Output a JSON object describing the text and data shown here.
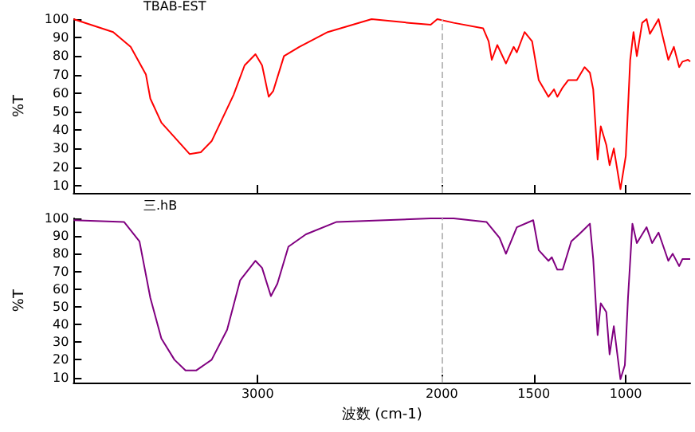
{
  "chart_data": [
    {
      "type": "line",
      "ylabel": "%T",
      "annotations": [
        "TBAB-EST"
      ],
      "xlim": [
        4000,
        650
      ],
      "xticks": [
        3000,
        2000,
        1500,
        1000
      ],
      "ylim": [
        6,
        100
      ],
      "yticks": [
        10,
        20,
        30,
        40,
        50,
        60,
        70,
        80,
        90,
        100
      ],
      "tick_labels": "y",
      "grid": false,
      "ref_lines": [
        {
          "axis": "x",
          "value": 2000,
          "color": "#bbbbbb",
          "line_style": "dashed"
        }
      ],
      "series": [
        {
          "color": "#ff0000",
          "x": [
            4000,
            3785,
            3690,
            3607,
            3583,
            3523,
            3369,
            3309,
            3250,
            3131,
            3071,
            3012,
            2976,
            2940,
            2916,
            2857,
            2774,
            2619,
            2381,
            2179,
            2060,
            2024,
            1935,
            1775,
            1745,
            1728,
            1698,
            1651,
            1609,
            1592,
            1550,
            1509,
            1473,
            1420,
            1390,
            1372,
            1343,
            1313,
            1266,
            1224,
            1195,
            1177,
            1153,
            1136,
            1106,
            1088,
            1065,
            1029,
            1000,
            976,
            958,
            940,
            911,
            887,
            869,
            822,
            769,
            739,
            710,
            692,
            662,
            650
          ],
          "values": [
            100,
            93,
            85,
            70,
            57,
            44,
            27,
            28,
            34,
            59,
            75,
            81,
            75,
            58,
            61,
            80,
            85,
            93,
            100,
            98,
            97,
            100,
            98,
            95,
            88,
            78,
            86,
            76,
            85,
            82,
            93,
            88,
            67,
            58,
            62,
            58,
            63,
            67,
            67,
            74,
            71,
            62,
            24,
            42,
            32,
            21,
            30,
            8,
            26,
            78,
            93,
            80,
            98,
            100,
            92,
            100,
            78,
            85,
            74,
            77,
            78,
            77
          ]
        }
      ]
    },
    {
      "type": "line",
      "ylabel": "%T",
      "xlabel": "波数 (cm-1)",
      "annotations": [
        "三.hB"
      ],
      "xlim": [
        4000,
        650
      ],
      "xticks": [
        3000,
        2000,
        1500,
        1000
      ],
      "ylim": [
        7,
        100
      ],
      "yticks": [
        10,
        20,
        30,
        40,
        50,
        60,
        70,
        80,
        90,
        100
      ],
      "grid": false,
      "ref_lines": [
        {
          "axis": "x",
          "value": 2000,
          "color": "#bbbbbb",
          "line_style": "dashed"
        }
      ],
      "series": [
        {
          "color": "#800080",
          "x": [
            4000,
            3726,
            3642,
            3583,
            3523,
            3452,
            3392,
            3333,
            3250,
            3166,
            3095,
            3012,
            2976,
            2928,
            2893,
            2833,
            2738,
            2571,
            2060,
            1935,
            1757,
            1686,
            1651,
            1592,
            1503,
            1473,
            1420,
            1402,
            1372,
            1343,
            1296,
            1254,
            1224,
            1195,
            1177,
            1153,
            1136,
            1106,
            1088,
            1065,
            1029,
            1005,
            988,
            964,
            940,
            887,
            857,
            822,
            769,
            745,
            710,
            692,
            650
          ],
          "values": [
            99,
            98,
            87,
            55,
            32,
            20,
            14,
            14,
            20,
            37,
            65,
            76,
            72,
            56,
            63,
            84,
            91,
            98,
            100,
            100,
            98,
            89,
            80,
            95,
            99,
            82,
            76,
            78,
            71,
            71,
            87,
            91,
            94,
            97,
            77,
            34,
            52,
            47,
            23,
            39,
            9,
            17,
            55,
            97,
            86,
            95,
            86,
            92,
            76,
            80,
            73,
            77,
            77
          ]
        }
      ]
    }
  ]
}
